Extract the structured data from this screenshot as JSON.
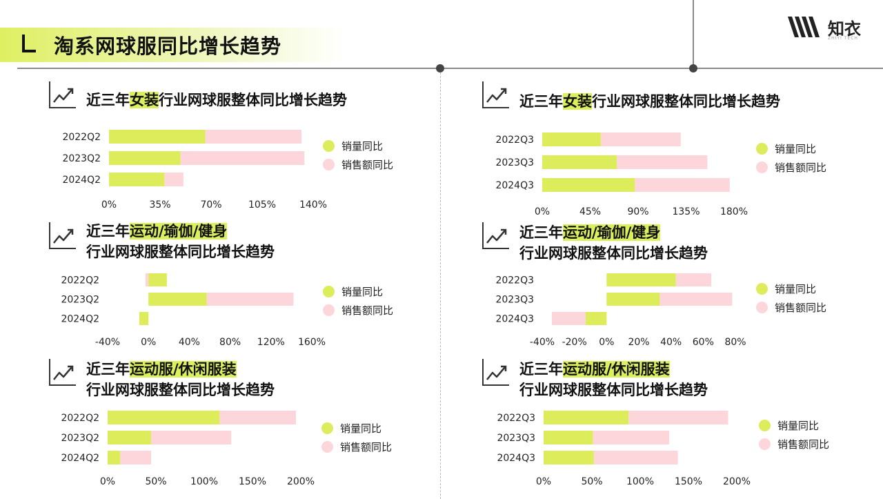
{
  "page": {
    "title": "淘系网球服同比增长趋势"
  },
  "logo": {
    "text": "知衣",
    "sub": "ZHIYI TECH"
  },
  "colors": {
    "sales_volume": "#dcec5a",
    "sales_amount": "#fcd6da",
    "accent": "#dcef5c"
  },
  "legend": {
    "sales_volume": "销量同比",
    "sales_amount": "销售额同比"
  },
  "panels": [
    {
      "title_pre": "近三年",
      "title_hl": "女装",
      "title_post": "行业网球服整体同比增长趋势",
      "title_line2": ""
    },
    {
      "title_pre": "近三年",
      "title_hl": "女装",
      "title_post": "行业网球服整体同比增长趋势",
      "title_line2": ""
    },
    {
      "title_pre": "近三年",
      "title_hl": "运动/瑜伽/健身",
      "title_post": "",
      "title_line2": "行业网球服整体同比增长趋势"
    },
    {
      "title_pre": "近三年",
      "title_hl": "运动/瑜伽/健身",
      "title_post": "",
      "title_line2": "行业网球服整体同比增长趋势"
    },
    {
      "title_pre": "近三年",
      "title_hl": "运动服/休闲服装",
      "title_post": "",
      "title_line2": "行业网球服整体同比增长趋势"
    },
    {
      "title_pre": "近三年",
      "title_hl": "运动服/休闲服装",
      "title_post": "",
      "title_line2": "行业网球服整体同比增长趋势"
    }
  ],
  "chart_data": [
    {
      "type": "bar",
      "orientation": "horizontal",
      "stacked": true,
      "categories": [
        "2022Q2",
        "2023Q2",
        "2024Q2"
      ],
      "xlim": [
        0,
        140
      ],
      "ticks": [
        0,
        35,
        70,
        105,
        140
      ],
      "tick_suffix": "%",
      "series": [
        {
          "name": "销量同比",
          "values": [
            66,
            49,
            38
          ]
        },
        {
          "name": "销售额同比",
          "values": [
            66,
            85,
            13
          ]
        }
      ]
    },
    {
      "type": "bar",
      "orientation": "horizontal",
      "stacked": true,
      "categories": [
        "2022Q3",
        "2023Q3",
        "2024Q3"
      ],
      "xlim": [
        0,
        180
      ],
      "ticks": [
        0,
        45,
        90,
        135,
        180
      ],
      "tick_suffix": "%",
      "series": [
        {
          "name": "销量同比",
          "values": [
            55,
            70,
            87
          ]
        },
        {
          "name": "销售额同比",
          "values": [
            75,
            85,
            89
          ]
        }
      ]
    },
    {
      "type": "bar",
      "orientation": "horizontal",
      "stacked": true,
      "categories": [
        "2022Q2",
        "2023Q2",
        "2024Q2"
      ],
      "xlim": [
        -40,
        160
      ],
      "ticks": [
        -40,
        0,
        40,
        80,
        120,
        160
      ],
      "tick_suffix": "%",
      "series": [
        {
          "name": "销量同比",
          "values": [
            18,
            57,
            -9
          ]
        },
        {
          "name": "销售额同比",
          "values": [
            -3,
            85,
            0
          ]
        }
      ]
    },
    {
      "type": "bar",
      "orientation": "horizontal",
      "stacked": true,
      "categories": [
        "2022Q3",
        "2023Q3",
        "2024Q3"
      ],
      "xlim": [
        -40,
        80
      ],
      "ticks": [
        -40,
        -20,
        0,
        20,
        40,
        60,
        80
      ],
      "tick_suffix": "%",
      "series": [
        {
          "name": "销量同比",
          "values": [
            43,
            33,
            -13
          ]
        },
        {
          "name": "销售额同比",
          "values": [
            22,
            45,
            -21
          ]
        }
      ]
    },
    {
      "type": "bar",
      "orientation": "horizontal",
      "stacked": true,
      "categories": [
        "2022Q2",
        "2023Q2",
        "2024Q2"
      ],
      "xlim": [
        0,
        200
      ],
      "ticks": [
        0,
        50,
        100,
        150,
        200
      ],
      "tick_suffix": "%",
      "series": [
        {
          "name": "销量同比",
          "values": [
            116,
            45,
            13
          ]
        },
        {
          "name": "销售额同比",
          "values": [
            79,
            83,
            32
          ]
        }
      ]
    },
    {
      "type": "bar",
      "orientation": "horizontal",
      "stacked": true,
      "categories": [
        "2022Q3",
        "2023Q3",
        "2024Q3"
      ],
      "xlim": [
        0,
        200
      ],
      "ticks": [
        0,
        50,
        100,
        150,
        200
      ],
      "tick_suffix": "%",
      "series": [
        {
          "name": "销量同比",
          "values": [
            88,
            51,
            52
          ]
        },
        {
          "name": "销售额同比",
          "values": [
            103,
            79,
            87
          ]
        }
      ]
    }
  ]
}
